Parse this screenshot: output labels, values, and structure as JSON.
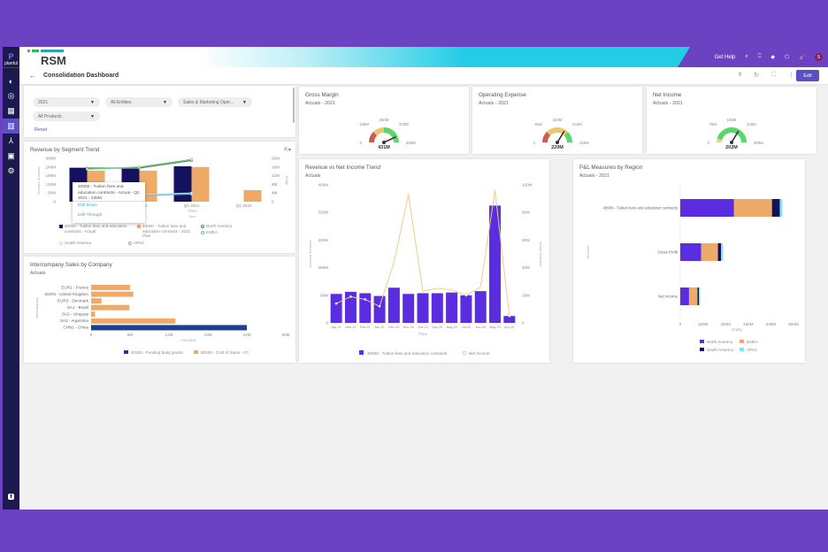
{
  "app": {
    "brand": "RSM",
    "platform": "planful",
    "page_title": "Consolidation Dashboard",
    "get_help": "Get Help",
    "avatar": "S",
    "notif_count": "1",
    "edit": "Edit"
  },
  "sidebar": {
    "items": [
      {
        "icon": "globe-icon"
      },
      {
        "icon": "target-icon"
      },
      {
        "icon": "grid-icon"
      },
      {
        "icon": "dashboard-icon",
        "active": true
      },
      {
        "icon": "hierarchy-icon"
      },
      {
        "icon": "clipboard-icon"
      },
      {
        "icon": "gear-icon"
      }
    ],
    "bottom_icon": "upload-icon"
  },
  "filters": {
    "year": "2021",
    "entities": "All Entities",
    "department": "Sales & Marketing Oper...",
    "products": "All Products",
    "reset": "Reset"
  },
  "gauges": [
    {
      "title": "Gross Margin",
      "subtitle": "Actuals - 2021",
      "ticks": [
        "0",
        "125M",
        "250M",
        "375M",
        "500M"
      ],
      "value": 431,
      "max": 500,
      "value_label": "431M"
    },
    {
      "title": "Operating Expense",
      "subtitle": "Actuals - 2021",
      "ticks": [
        "0",
        "81M",
        "163M",
        "244M",
        "325M"
      ],
      "value": 220,
      "max": 325,
      "value_label": "220M"
    },
    {
      "title": "Net Income",
      "subtitle": "Actuals - 2021",
      "ticks": [
        "0",
        "75M",
        "150M",
        "225M",
        "300M"
      ],
      "value": 202,
      "max": 300,
      "value_label": "202M"
    }
  ],
  "colors": {
    "navy": "#14125e",
    "orange": "#eeaa66",
    "purple": "#5a2ee0",
    "cyan": "#7fe3f0",
    "gold": "#e8cf8a",
    "green": "#5bd66a",
    "red": "#c8604c",
    "yellow": "#eec86a"
  },
  "segment": {
    "title": "Revenue by Segment Trend",
    "xlabel": "Time",
    "tooltip": "40000 - Tuition fees and education contracts - Actual - Q2 2021 - 235M",
    "menu": [
      "Drill Down",
      "Drill Through"
    ],
    "legend": [
      "40000 - Tuition fees and education contracts - Actual",
      "40000 - Tuition fees and education contracts - 2021 Plan",
      "North America",
      "EMEA",
      "South America",
      "APAC"
    ]
  },
  "intercompany": {
    "title": "Intercompany Sales by Company",
    "subtitle": "Actuals",
    "legend": [
      "40100 - Funding body grants",
      "50030 - Cost of Sales - I/C"
    ]
  },
  "revenue_trend": {
    "title": "Revenue vs Net Income Trend",
    "subtitle": "Actuals",
    "legend": [
      "40000 - Tuition fees and education contracts",
      "Net Income"
    ]
  },
  "pl": {
    "title": "P&L Measures by Region",
    "subtitle": "Actuals - 2021",
    "legend": [
      "North America",
      "EMEA",
      "South America",
      "APAC"
    ]
  },
  "chart_data": [
    {
      "type": "bar",
      "id": "segment",
      "categories": [
        "Q2 2021",
        "Q3 2021",
        "Q4 2021",
        "Q1 2022"
      ],
      "ylim": [
        0,
        300
      ],
      "y_ticks": [
        "0",
        "60M",
        "120M",
        "180M",
        "240M",
        "300M"
      ],
      "y2lim": [
        0,
        20
      ],
      "y2_ticks": [
        "0",
        "4M",
        "8M",
        "12M",
        "16M",
        "20M"
      ],
      "ylabel": "Account Scenario",
      "y2label": "Entity",
      "xlabel": "Time",
      "series": [
        {
          "name": "Actual",
          "values": [
            235,
            228,
            245,
            0
          ]
        },
        {
          "name": "2021 Plan",
          "values": [
            215,
            215,
            240,
            80
          ]
        }
      ],
      "lines": [
        {
          "name": "North America",
          "values": [
            15.5,
            15.5,
            19
          ]
        },
        {
          "name": "EMEA",
          "values": [
            15,
            16,
            19.5
          ]
        },
        {
          "name": "South America",
          "values": [
            3.5,
            3.2,
            4
          ]
        },
        {
          "name": "APAC",
          "values": [
            3,
            2.8,
            3.5
          ]
        }
      ]
    },
    {
      "type": "bar",
      "id": "intercompany",
      "orientation": "horizontal",
      "categories": [
        "EUR1 - France",
        "EUR2 - United Kingdom",
        "EUR3 - Denmark",
        "SA1 - Brazil",
        "SA2 - Uruguay",
        "SA3 - Argentina",
        "CHN1 - China"
      ],
      "xlim": [
        0,
        30
      ],
      "x_ticks": [
        "0",
        "6M",
        "12M",
        "18M",
        "24M",
        "30M"
      ],
      "xlabel": "Account",
      "ylabel": "Intercompany",
      "series": [
        {
          "name": "50030 - Cost of Sales - I/C",
          "values": [
            6,
            6.5,
            1.6,
            5.9,
            0.6,
            13,
            0
          ]
        },
        {
          "name": "40100 - Funding body grants",
          "values": [
            0,
            0,
            0,
            0,
            0,
            0,
            24
          ]
        }
      ]
    },
    {
      "type": "bar",
      "id": "revenue_trend",
      "categories": [
        "Apr-21",
        "Mar-21",
        "Feb-21",
        "Jan-21",
        "Dec-20",
        "Nov-20",
        "Oct-20",
        "Sep-20",
        "Aug-20",
        "Jul-20",
        "Jun-20",
        "May-20",
        "Apr-20"
      ],
      "ylim": [
        0,
        400
      ],
      "y_ticks": [
        "0",
        "80M",
        "160M",
        "240M",
        "320M",
        "400M"
      ],
      "y2lim": [
        0,
        100
      ],
      "y2_ticks": [
        "0",
        "20M",
        "40M",
        "60M",
        "80M",
        "100M"
      ],
      "xlabel": "Time",
      "ylabel": "Account Scenario",
      "y2label": "Actual Scenario",
      "series": [
        {
          "name": "40000 - Tuition fees and education contracts",
          "values": [
            84,
            90,
            86,
            78,
            102,
            84,
            86,
            86,
            88,
            80,
            92,
            340,
            20
          ]
        }
      ],
      "line": {
        "name": "Net Income",
        "values": [
          14,
          19,
          17,
          12,
          44,
          93,
          23,
          25,
          24,
          20,
          26,
          96,
          5
        ]
      }
    },
    {
      "type": "bar",
      "id": "pl",
      "orientation": "horizontal",
      "stacked": true,
      "categories": [
        "40000 - Tuition fees and education contracts",
        "Gross Profit",
        "Net Income"
      ],
      "xlim": [
        0,
        800
      ],
      "x_ticks": [
        "0",
        "160M",
        "320M",
        "480M",
        "640M",
        "800M"
      ],
      "xlabel": "Entity",
      "ylabel": "Account",
      "series": [
        {
          "name": "North America",
          "values": [
            380,
            148,
            62
          ]
        },
        {
          "name": "EMEA",
          "values": [
            268,
            118,
            60
          ]
        },
        {
          "name": "South America",
          "values": [
            55,
            22,
            10
          ]
        },
        {
          "name": "APAC",
          "values": [
            18,
            14,
            8
          ]
        }
      ]
    }
  ]
}
